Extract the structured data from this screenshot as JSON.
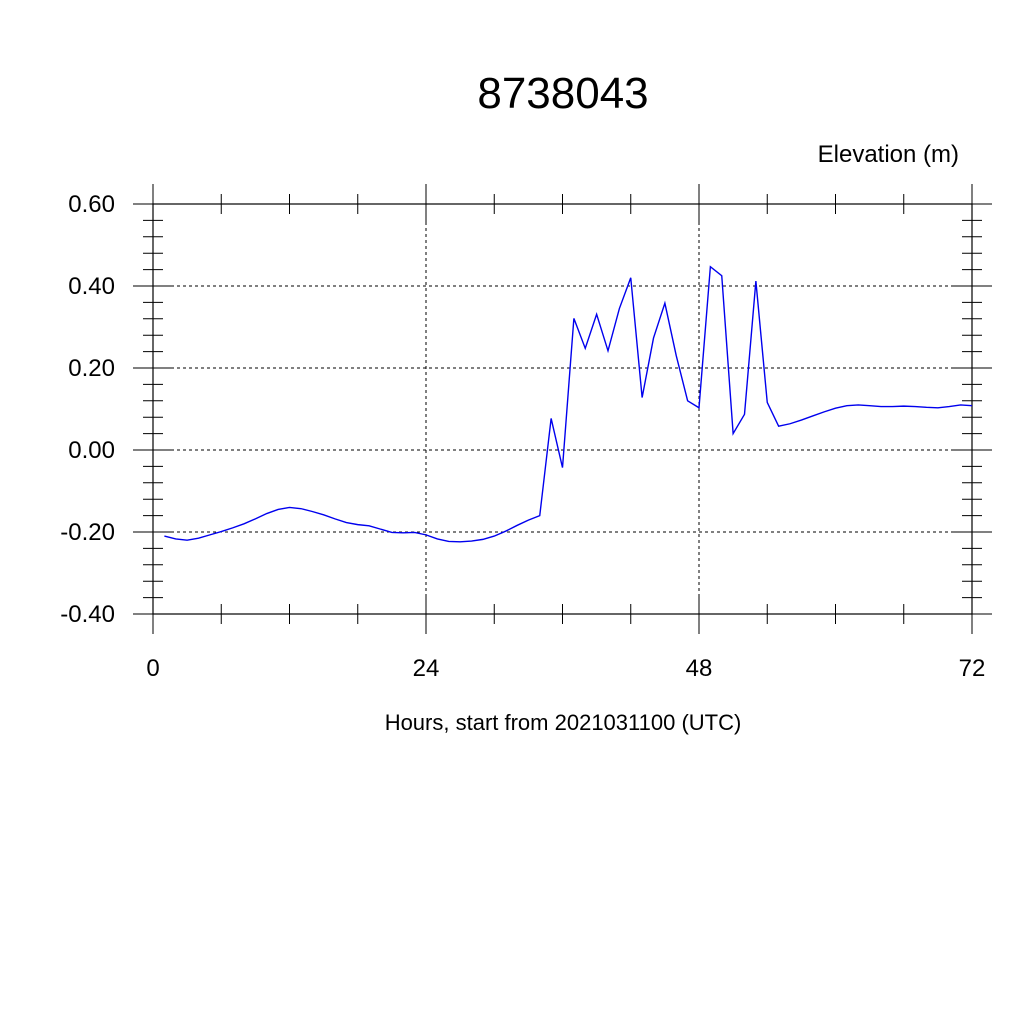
{
  "chart_data": {
    "type": "line",
    "title": "8738043",
    "ylabel": "Elevation (m)",
    "xlabel": "Hours, start from 2021031100 (UTC)",
    "xlim": [
      0,
      72
    ],
    "ylim": [
      -0.4,
      0.6
    ],
    "xticks": [
      0,
      24,
      48,
      72
    ],
    "xtick_labels": [
      "0",
      "24",
      "48",
      "72"
    ],
    "yticks": [
      -0.4,
      -0.2,
      0.0,
      0.2,
      0.4,
      0.6
    ],
    "ytick_labels": [
      "-0.40",
      "-0.20",
      "0.00",
      "0.20",
      "0.40",
      "0.60"
    ],
    "grid": true,
    "series": [
      {
        "color": "#0000ee",
        "x": [
          1,
          2,
          3,
          4,
          5,
          6,
          7,
          8,
          9,
          10,
          11,
          12,
          13,
          14,
          15,
          16,
          17,
          18,
          19,
          20,
          21,
          22,
          23,
          24,
          25,
          26,
          27,
          28,
          29,
          30,
          31,
          32,
          33,
          34,
          35,
          36,
          37,
          38,
          39,
          40,
          41,
          42,
          43,
          44,
          45,
          46,
          47,
          48,
          49,
          50,
          51,
          52,
          53,
          54,
          55,
          56,
          57,
          58,
          59,
          60,
          61,
          62,
          63,
          64,
          65,
          66,
          67,
          68,
          69,
          70,
          71,
          72
        ],
        "y": [
          -0.21,
          -0.217,
          -0.22,
          -0.215,
          -0.207,
          -0.199,
          -0.19,
          -0.18,
          -0.168,
          -0.155,
          -0.145,
          -0.14,
          -0.143,
          -0.15,
          -0.158,
          -0.168,
          -0.177,
          -0.182,
          -0.185,
          -0.193,
          -0.201,
          -0.202,
          -0.201,
          -0.207,
          -0.217,
          -0.223,
          -0.224,
          -0.222,
          -0.218,
          -0.21,
          -0.198,
          -0.184,
          -0.171,
          -0.16,
          0.077,
          -0.043,
          0.321,
          0.248,
          0.331,
          0.242,
          0.345,
          0.42,
          0.128,
          0.273,
          0.358,
          0.23,
          0.12,
          0.103,
          0.447,
          0.425,
          0.04,
          0.087,
          0.412,
          0.116,
          0.058,
          0.064,
          0.073,
          0.083,
          0.093,
          0.102,
          0.108,
          0.11,
          0.108,
          0.106,
          0.106,
          0.107,
          0.106,
          0.104,
          0.103,
          0.106,
          0.11,
          0.108
        ]
      }
    ]
  }
}
